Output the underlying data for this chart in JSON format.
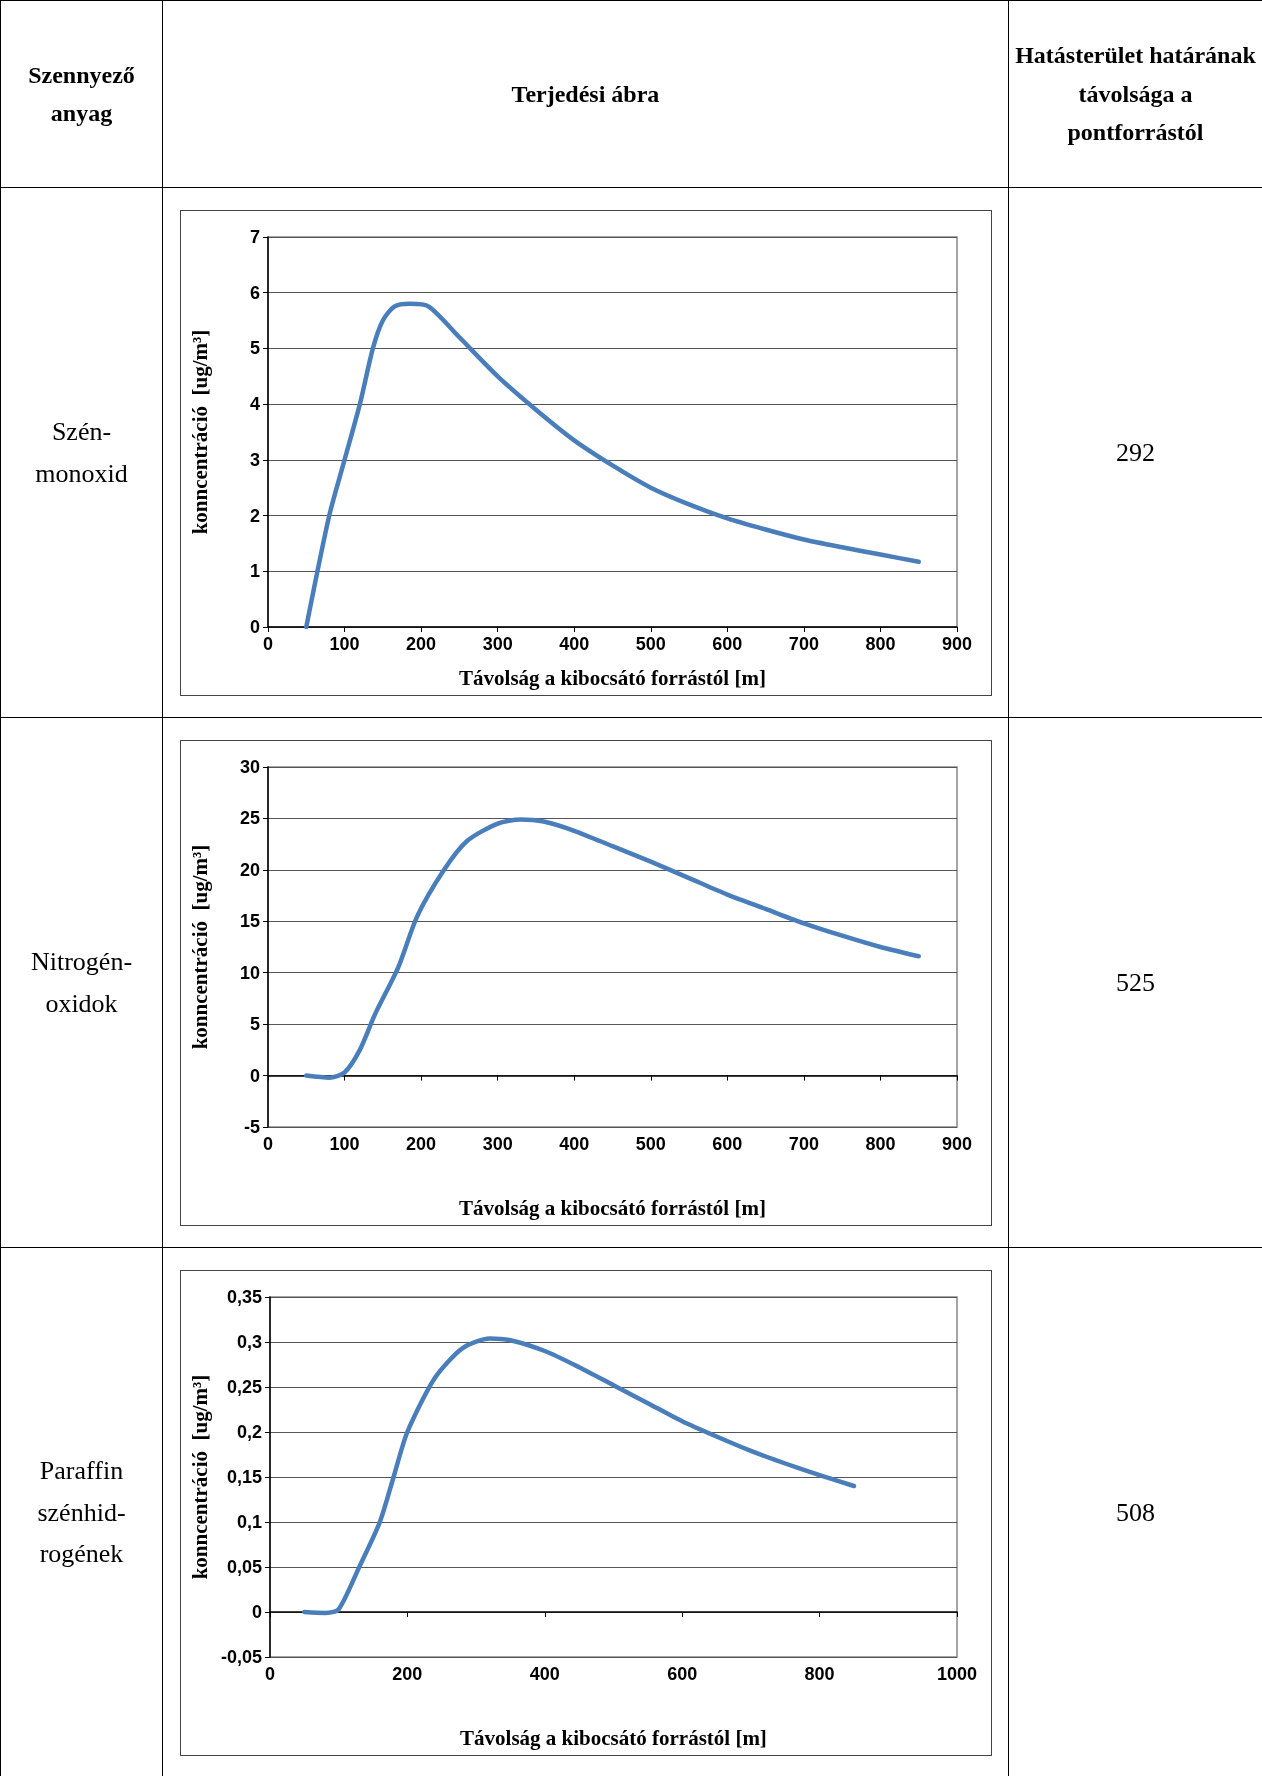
{
  "chart_data": [
    {
      "type": "other",
      "annotations": [
        "Szennyező anyag",
        "Terjedési ábra",
        "Hatásterület határának távolsága a pontforrástól"
      ]
    },
    {
      "type": "line",
      "xlabel": "Távolság a kibocsátó forrástól [m]",
      "ylabel": "konncentráció  [ug/m³]",
      "annotations": [
        "Szén-monoxid",
        "292"
      ],
      "xlim": [
        0,
        900
      ],
      "xticks": [
        0,
        100,
        200,
        300,
        400,
        500,
        600,
        700,
        800,
        900
      ],
      "ylim": [
        0,
        7
      ],
      "yticks": [
        0,
        1,
        2,
        3,
        4,
        5,
        6,
        7
      ],
      "grid": "y",
      "marker": "none",
      "line_style": "solid",
      "series": [
        {
          "color": "#4a7ebb",
          "x": [
            50,
            80,
            100,
            120,
            137,
            150,
            165,
            185,
            210,
            250,
            300,
            350,
            400,
            450,
            500,
            550,
            600,
            650,
            700,
            750,
            800,
            850
          ],
          "values": [
            0,
            2,
            3,
            4,
            5,
            5.5,
            5.75,
            5.8,
            5.75,
            5.2,
            4.5,
            3.9,
            3.35,
            2.9,
            2.5,
            2.2,
            1.95,
            1.75,
            1.57,
            1.43,
            1.3,
            1.17
          ]
        }
      ]
    },
    {
      "type": "line",
      "xlabel": "Távolság a kibocsátó forrástól [m]",
      "ylabel": "konncentráció  [ug/m³]",
      "annotations": [
        "Nitrogén-oxidok",
        "525"
      ],
      "xlim": [
        0,
        900
      ],
      "xticks": [
        0,
        100,
        200,
        300,
        400,
        500,
        600,
        700,
        800,
        900
      ],
      "ylim": [
        -5,
        30
      ],
      "yticks": [
        -5,
        0,
        5,
        10,
        15,
        20,
        25,
        30
      ],
      "grid": "y",
      "marker": "none",
      "line_style": "solid",
      "series": [
        {
          "color": "#4a7ebb",
          "x": [
            50,
            80,
            100,
            120,
            140,
            170,
            195,
            230,
            260,
            300,
            330,
            360,
            400,
            450,
            500,
            550,
            600,
            650,
            700,
            750,
            800,
            850
          ],
          "values": [
            0,
            -0.2,
            0.3,
            2.5,
            6,
            10.5,
            15.5,
            20,
            22.8,
            24.5,
            24.9,
            24.7,
            23.8,
            22.3,
            20.8,
            19.2,
            17.6,
            16.2,
            14.8,
            13.6,
            12.5,
            11.6
          ]
        }
      ]
    },
    {
      "type": "line",
      "xlabel": "Távolság a kibocsátó forrástól [m]",
      "ylabel": "konncentráció  [ug/m³]",
      "annotations": [
        "Paraffin szénhid-rogének",
        "508"
      ],
      "xlim": [
        0,
        1000
      ],
      "xticks": [
        0,
        200,
        400,
        600,
        800,
        1000
      ],
      "ylim": [
        -0.05,
        0.35
      ],
      "yticks": [
        {
          "value": -0.05,
          "label": "-0,05"
        },
        0,
        {
          "value": 0.05,
          "label": "0,05"
        },
        {
          "value": 0.1,
          "label": "0,1"
        },
        {
          "value": 0.15,
          "label": "0,15"
        },
        {
          "value": 0.2,
          "label": "0,2"
        },
        {
          "value": 0.25,
          "label": "0,25"
        },
        {
          "value": 0.3,
          "label": "0,3"
        },
        {
          "value": 0.35,
          "label": "0,35"
        }
      ],
      "grid": "y",
      "marker": "none",
      "line_style": "solid",
      "series": [
        {
          "color": "#4a7ebb",
          "x": [
            50,
            80,
            100,
            130,
            160,
            180,
            200,
            240,
            280,
            320,
            350,
            400,
            450,
            500,
            550,
            600,
            650,
            700,
            750,
            800,
            850
          ],
          "values": [
            0,
            -0.001,
            0.003,
            0.05,
            0.1,
            0.15,
            0.2,
            0.26,
            0.293,
            0.304,
            0.302,
            0.29,
            0.272,
            0.252,
            0.232,
            0.212,
            0.195,
            0.179,
            0.165,
            0.152,
            0.14
          ]
        }
      ]
    }
  ]
}
